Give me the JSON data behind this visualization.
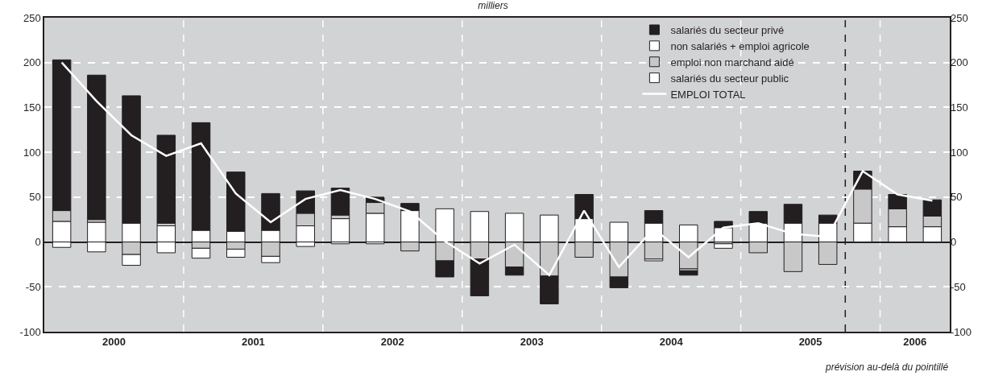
{
  "chart_data": {
    "type": "bar",
    "stacked": true,
    "title": "milliers",
    "x": [
      2000.125,
      2000.375,
      2000.625,
      2000.875,
      2001.125,
      2001.375,
      2001.625,
      2001.875,
      2002.125,
      2002.375,
      2002.625,
      2002.875,
      2003.125,
      2003.375,
      2003.625,
      2003.875,
      2004.125,
      2004.375,
      2004.625,
      2004.875,
      2005.125,
      2005.375,
      2005.625,
      2005.875,
      2006.125,
      2006.375
    ],
    "series": [
      {
        "name": "salariés du secteur public",
        "color": "#ffffff",
        "values": [
          23,
          22,
          21,
          18,
          13,
          12,
          13,
          18,
          26,
          32,
          35,
          37,
          34,
          32,
          30,
          26,
          22,
          21,
          19,
          16,
          21,
          21,
          21,
          21,
          17,
          17
        ]
      },
      {
        "name": "emploi non marchand aidé",
        "color": "#c8c8c8",
        "values": [
          12,
          3,
          -14,
          3,
          -7,
          -8,
          -16,
          14,
          4,
          12,
          -10,
          -21,
          -19,
          -28,
          -38,
          -17,
          -39,
          -19,
          -30,
          -2,
          -12,
          -33,
          -25,
          38,
          20,
          12
        ]
      },
      {
        "name": "non salariés + emploi agricole",
        "color": "#ffffff",
        "values": [
          -6,
          -11,
          -12,
          -12,
          -11,
          -9,
          -7,
          -5,
          -2,
          -2,
          null,
          null,
          null,
          null,
          null,
          null,
          null,
          -2,
          -2,
          -5,
          null,
          null,
          null,
          null,
          null,
          null
        ]
      },
      {
        "name": "salariés du secteur privé",
        "color": "#231f20",
        "values": [
          168,
          161,
          142,
          98,
          120,
          66,
          41,
          25,
          30,
          6,
          8,
          -18,
          -41,
          -9,
          -31,
          27,
          -12,
          14,
          -5,
          7,
          13,
          21,
          9,
          20,
          16,
          18
        ]
      },
      {
        "name": "EMPLOI TOTAL",
        "type": "line",
        "color": "#ffffff",
        "values": [
          200,
          157,
          119,
          96,
          110,
          54,
          22,
          48,
          58,
          48,
          34,
          1,
          -24,
          -3,
          -37,
          35,
          -28,
          15,
          -17,
          16,
          21,
          9,
          6,
          79,
          53,
          46
        ]
      }
    ],
    "xlim": [
      2000,
      2006.5
    ],
    "xticks": [
      {
        "value": 2000.5,
        "label": "2000"
      },
      {
        "value": 2001.5,
        "label": "2001"
      },
      {
        "value": 2002.5,
        "label": "2002"
      },
      {
        "value": 2003.5,
        "label": "2003"
      },
      {
        "value": 2004.5,
        "label": "2004"
      },
      {
        "value": 2005.5,
        "label": "2005"
      },
      {
        "value": 2006.25,
        "label": "2006"
      }
    ],
    "ylim": [
      -100,
      250
    ],
    "yticks": [
      -100,
      -50,
      0,
      50,
      100,
      150,
      200,
      250
    ],
    "y2lim": [
      -100,
      250
    ],
    "y2ticks": [
      -100,
      -50,
      0,
      50,
      100,
      150,
      200,
      250
    ],
    "grid": "y",
    "legend": "top right",
    "ref_lines": [
      {
        "axis": "x",
        "value": 2001,
        "color": "#ffffff",
        "line_style": "dashed"
      },
      {
        "axis": "x",
        "value": 2002,
        "color": "#ffffff",
        "line_style": "dashed"
      },
      {
        "axis": "x",
        "value": 2003,
        "color": "#ffffff",
        "line_style": "dashed"
      },
      {
        "axis": "x",
        "value": 2004,
        "color": "#ffffff",
        "line_style": "dashed"
      },
      {
        "axis": "x",
        "value": 2005,
        "color": "#ffffff",
        "line_style": "dashed"
      },
      {
        "axis": "x",
        "value": 2006,
        "color": "#ffffff",
        "line_style": "dashed"
      },
      {
        "axis": "x",
        "value": 2005.75,
        "color": "#231f20",
        "line_style": "dashed"
      }
    ],
    "annotations": [
      "prévision au-delà du pointillé"
    ]
  }
}
